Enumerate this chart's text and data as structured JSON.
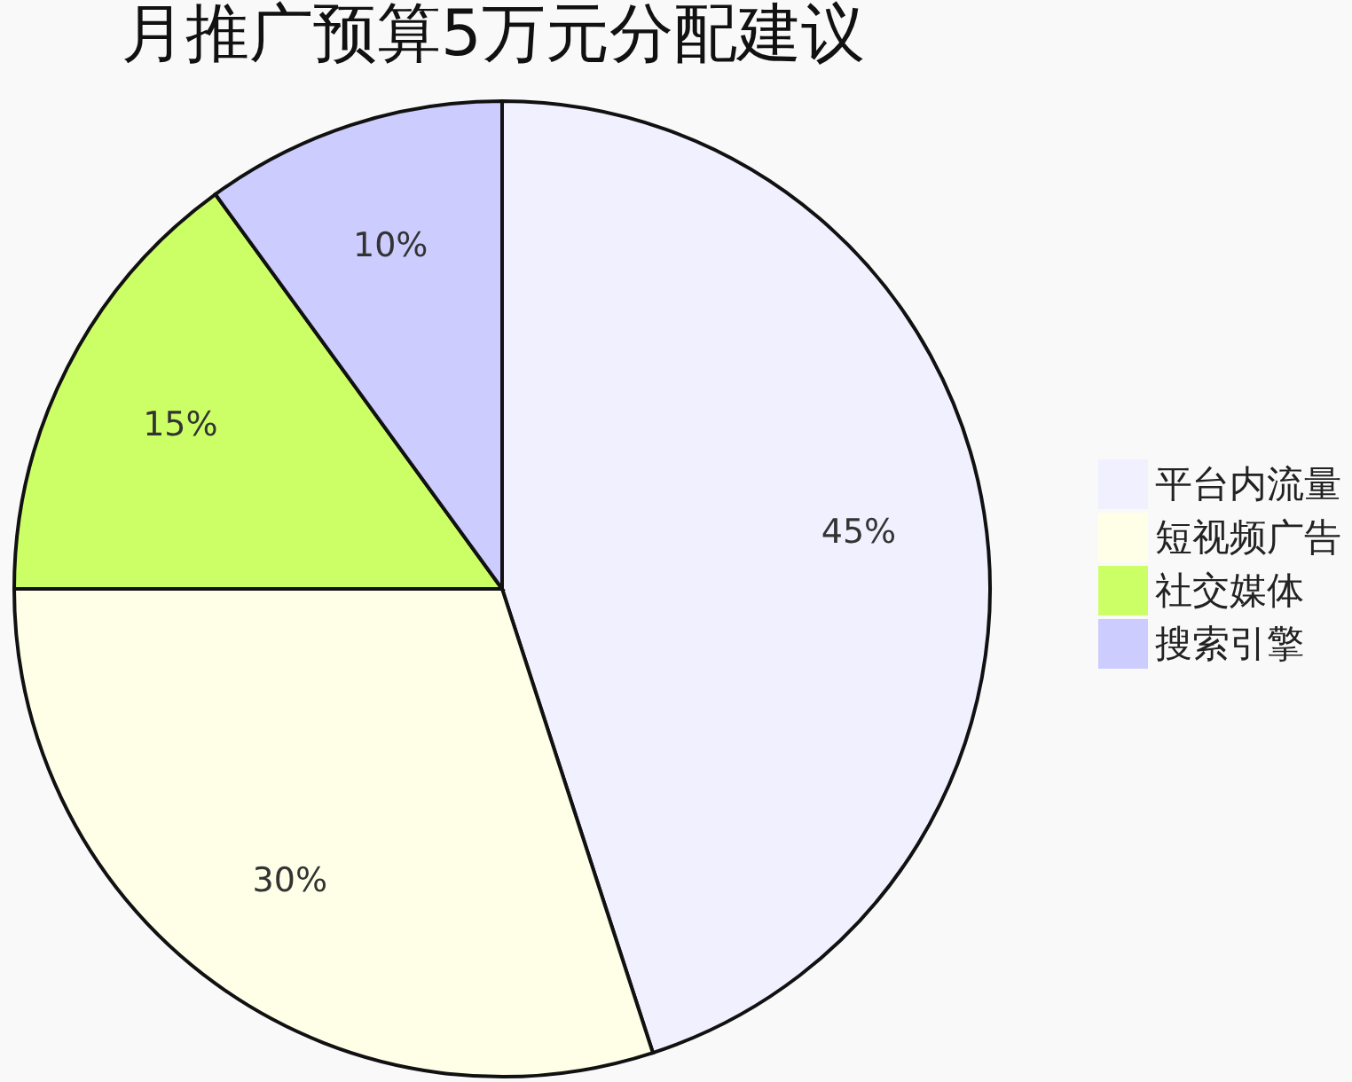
{
  "chart_data": {
    "type": "pie",
    "title": "月推广预算5万元分配建议",
    "categories": [
      "平台内流量",
      "短视频广告",
      "社交媒体",
      "搜索引擎"
    ],
    "values": [
      45,
      30,
      15,
      10
    ],
    "colors": [
      "#f0f0ff",
      "#ffffe8",
      "#ccff66",
      "#ccccff"
    ],
    "value_labels": [
      "45%",
      "30%",
      "15%",
      "10%"
    ],
    "legend": "right"
  }
}
